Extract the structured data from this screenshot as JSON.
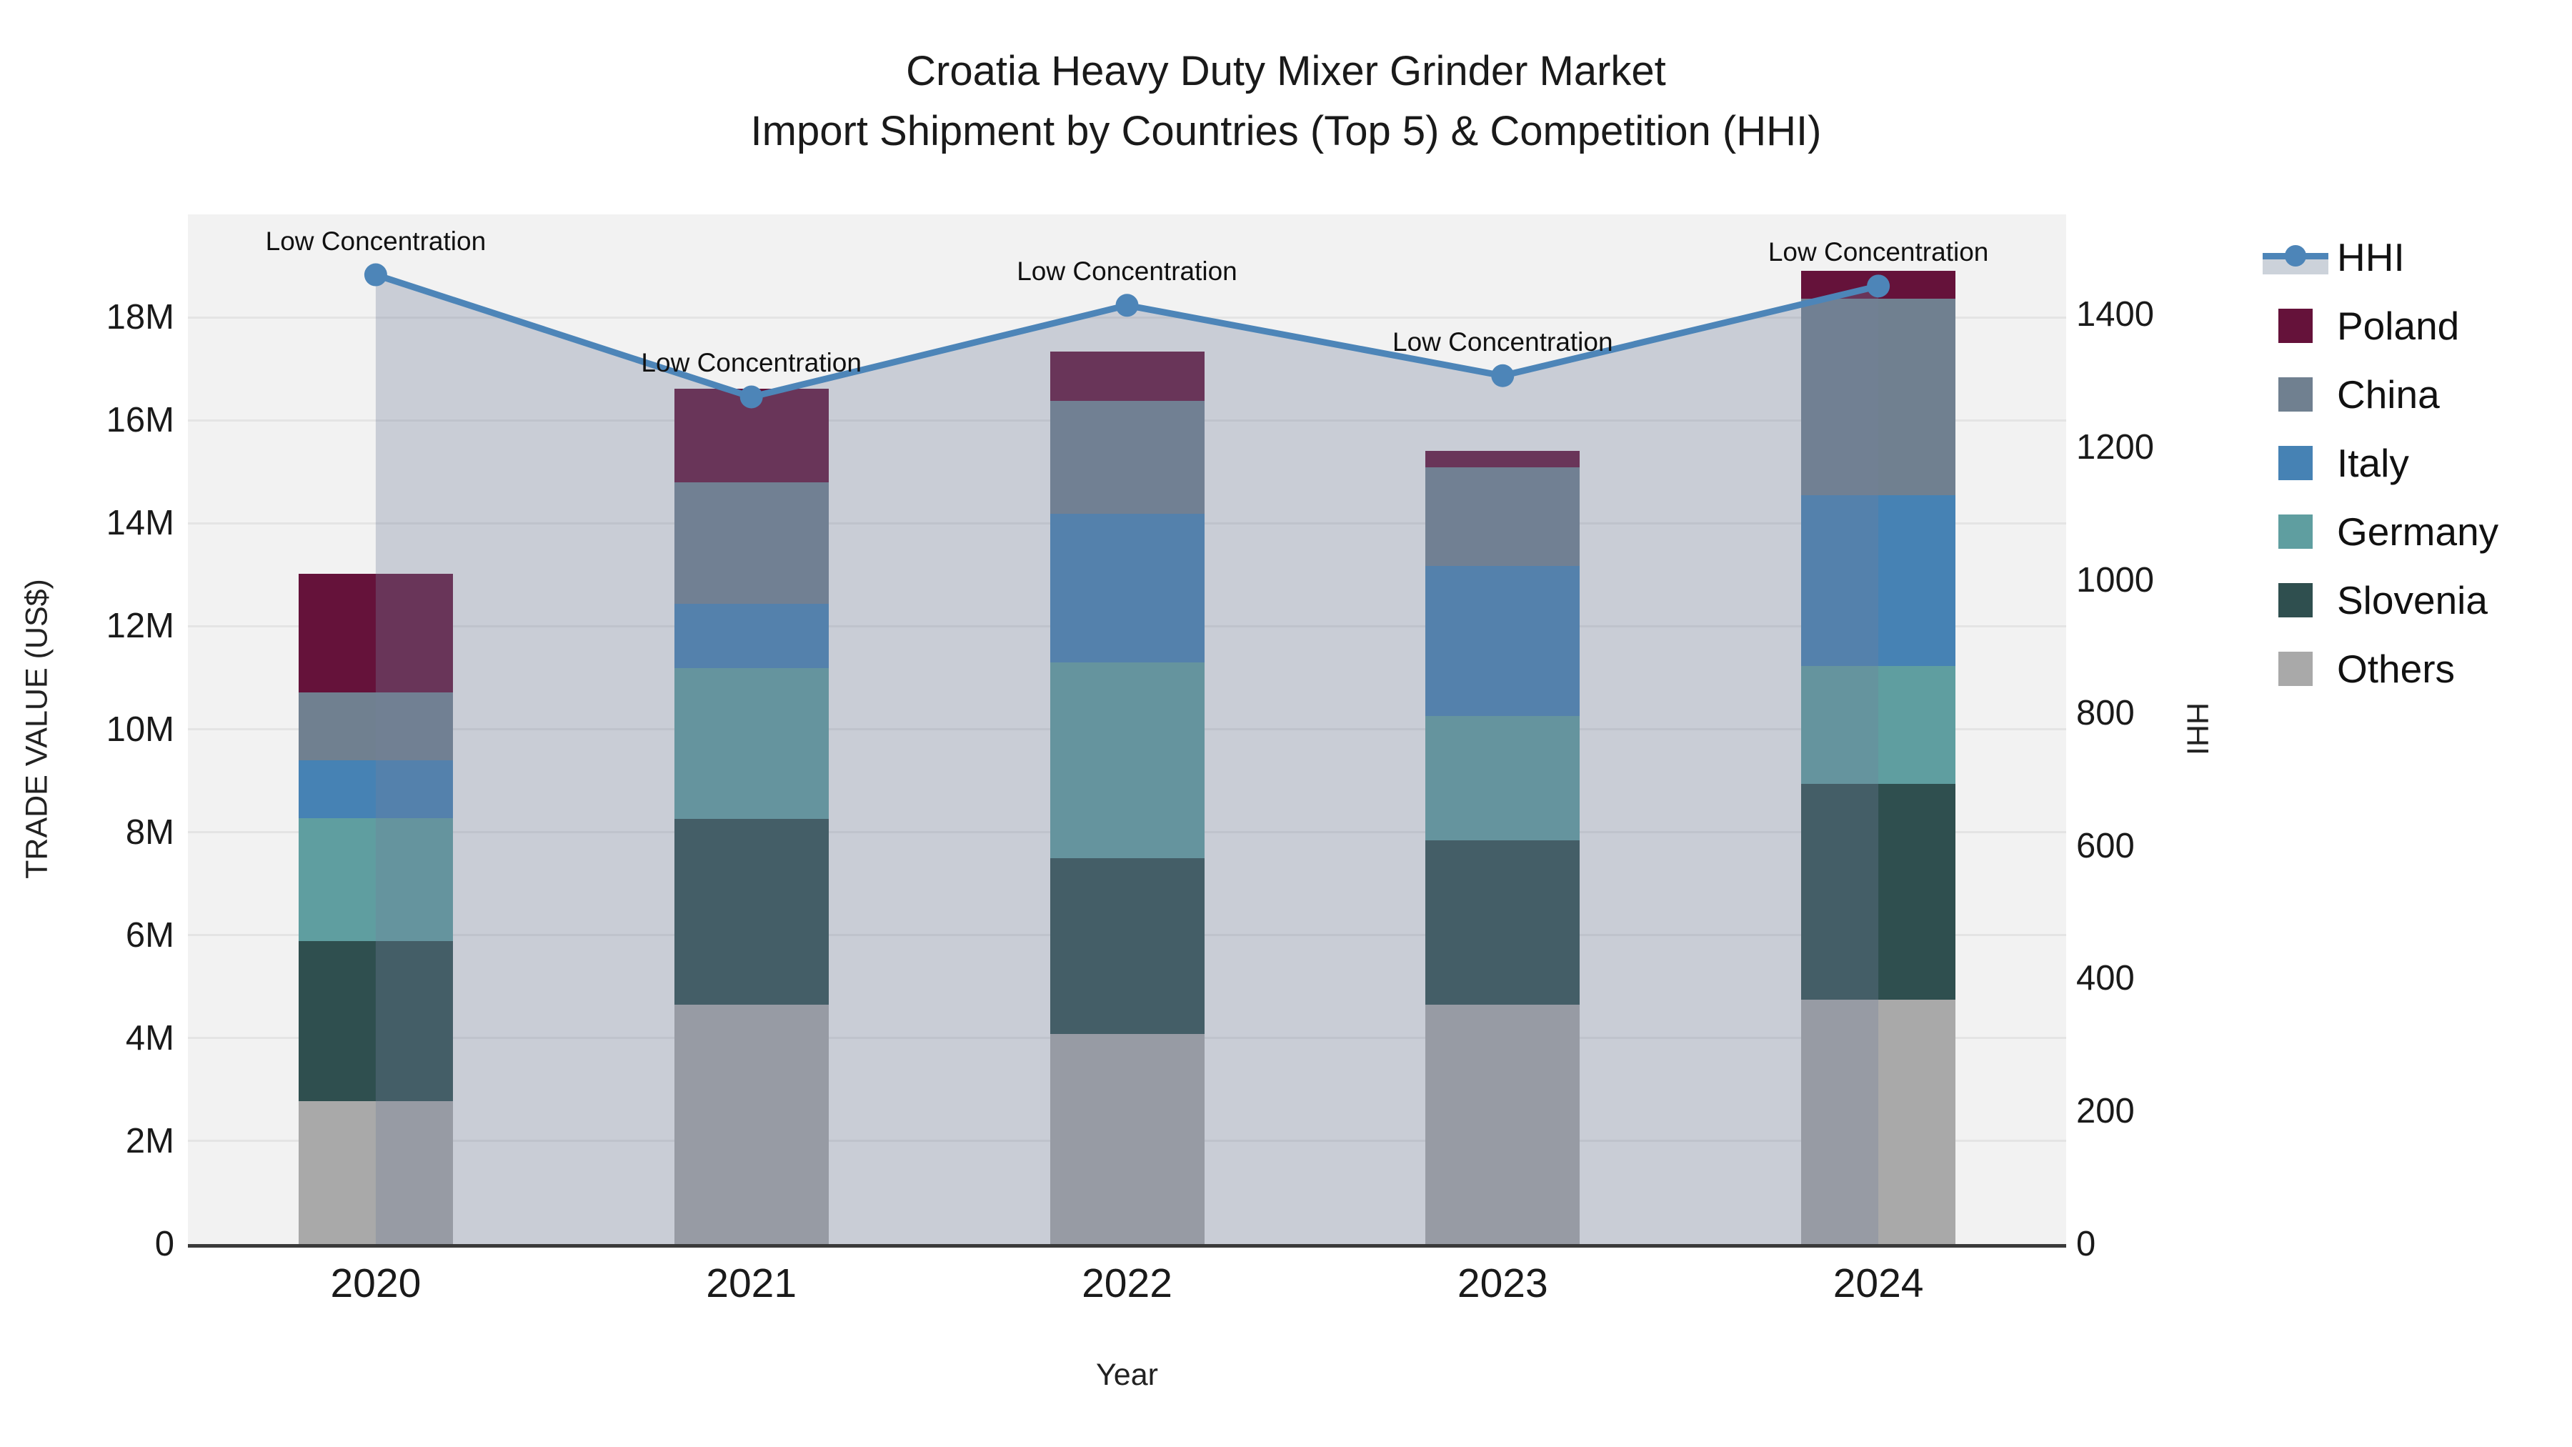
{
  "title": {
    "line1": "Croatia Heavy Duty Mixer Grinder Market",
    "line2": "Import Shipment by Countries (Top 5) & Competition (HHI)"
  },
  "axes": {
    "y_left": {
      "label": "TRADE VALUE (US$)",
      "tick_labels": [
        "0",
        "2M",
        "4M",
        "6M",
        "8M",
        "10M",
        "12M",
        "14M",
        "16M",
        "18M"
      ],
      "tick_values_millions": [
        0,
        2,
        4,
        6,
        8,
        10,
        12,
        14,
        16,
        18
      ],
      "max_millions": 20
    },
    "y_right": {
      "label": "HHI",
      "tick_labels": [
        "0",
        "200",
        "400",
        "600",
        "800",
        "1000",
        "1200",
        "1400"
      ],
      "tick_values": [
        0,
        200,
        400,
        600,
        800,
        1000,
        1200,
        1400
      ],
      "max": 1551
    },
    "x": {
      "label": "Year",
      "tick_labels": [
        "2020",
        "2021",
        "2022",
        "2023",
        "2024"
      ]
    }
  },
  "legend": {
    "items": [
      {
        "label": "HHI",
        "type": "line",
        "color_key": "hhi_line"
      },
      {
        "label": "Poland",
        "type": "swatch",
        "color_key": "poland"
      },
      {
        "label": "China",
        "type": "swatch",
        "color_key": "china"
      },
      {
        "label": "Italy",
        "type": "swatch",
        "color_key": "italy"
      },
      {
        "label": "Germany",
        "type": "swatch",
        "color_key": "germany"
      },
      {
        "label": "Slovenia",
        "type": "swatch",
        "color_key": "slovenia"
      },
      {
        "label": "Others",
        "type": "swatch",
        "color_key": "others"
      }
    ]
  },
  "colors": {
    "poland": "#65123A",
    "china": "#708090",
    "italy": "#4682B4",
    "germany": "#5F9EA0",
    "slovenia": "#2F4F4F",
    "others": "#A9A9A9",
    "hhi_line": "#4D85B8",
    "hhi_area_fill": "rgba(114,126,154,0.32)",
    "plot_background": "#F2F2F2",
    "gridline": "#E4E4E4",
    "axis_line": "#3A3A3A"
  },
  "chart_data": {
    "type": "bar+line",
    "categories": [
      "2020",
      "2021",
      "2022",
      "2023",
      "2024"
    ],
    "bar_unit": "million US$",
    "stack_order_bottom_to_top": [
      "Others",
      "Slovenia",
      "Germany",
      "Italy",
      "China",
      "Poland"
    ],
    "series": [
      {
        "name": "Others",
        "color_key": "others",
        "values": [
          2.78,
          4.65,
          4.08,
          4.65,
          4.74
        ]
      },
      {
        "name": "Slovenia",
        "color_key": "slovenia",
        "values": [
          3.11,
          3.61,
          3.42,
          3.19,
          4.2
        ]
      },
      {
        "name": "Germany",
        "color_key": "germany",
        "values": [
          2.38,
          2.93,
          3.8,
          2.41,
          2.29
        ]
      },
      {
        "name": "Italy",
        "color_key": "italy",
        "values": [
          1.12,
          1.25,
          2.88,
          2.92,
          3.32
        ]
      },
      {
        "name": "China",
        "color_key": "china",
        "values": [
          1.33,
          2.35,
          2.2,
          1.91,
          3.81
        ]
      },
      {
        "name": "Poland",
        "color_key": "poland",
        "values": [
          2.3,
          1.82,
          0.95,
          0.33,
          0.54
        ]
      }
    ],
    "bar_totals_millions": [
      13.02,
      16.61,
      17.33,
      15.41,
      18.9
    ],
    "line": {
      "name": "HHI",
      "values": [
        1460,
        1276,
        1414,
        1308,
        1443
      ],
      "axis": "right",
      "area_fill": true
    },
    "annotations": [
      {
        "x": "2020",
        "text": "Low Concentration"
      },
      {
        "x": "2021",
        "text": "Low Concentration"
      },
      {
        "x": "2022",
        "text": "Low Concentration"
      },
      {
        "x": "2023",
        "text": "Low Concentration"
      },
      {
        "x": "2024",
        "text": "Low Concentration"
      }
    ],
    "ylim_left_millions": [
      0,
      20
    ],
    "ylim_right": [
      0,
      1551
    ],
    "grid": "horizontal",
    "legend_position": "right"
  }
}
